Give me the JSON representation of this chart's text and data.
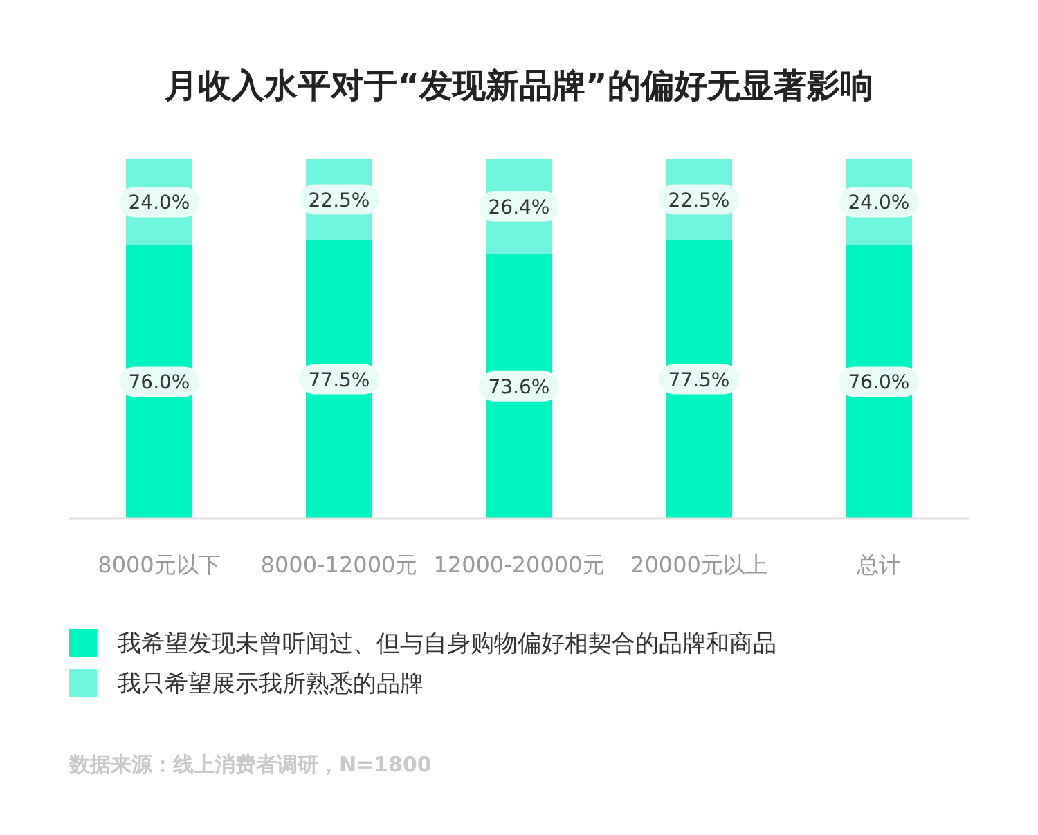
{
  "chart_data": {
    "type": "bar",
    "stacked": true,
    "legend": "bottom",
    "title": "月收入水平对于“发现新品牌”的偏好无显著影响",
    "categories": [
      "8000元以下",
      "8000-12000元",
      "12000-20000元",
      "20000元以上",
      "总计"
    ],
    "series": [
      {
        "name": "我希望发现未曾听闻过、但与自身购物偏好相契合的品牌和商品",
        "color": "#00f5c0",
        "values": [
          76.0,
          77.5,
          73.6,
          77.5,
          76.0
        ],
        "value_labels": [
          "76.0%",
          "77.5%",
          "73.6%",
          "77.5%",
          "76.0%"
        ]
      },
      {
        "name": "我只希望展示我所熟悉的品牌",
        "color": "#6ff5de",
        "values": [
          24.0,
          22.5,
          26.4,
          22.5,
          24.0
        ],
        "value_labels": [
          "24.0%",
          "22.5%",
          "26.4%",
          "22.5%",
          "24.0%"
        ]
      }
    ],
    "annotations": [
      "数据来源：线上消费者调研，N=1800"
    ]
  }
}
